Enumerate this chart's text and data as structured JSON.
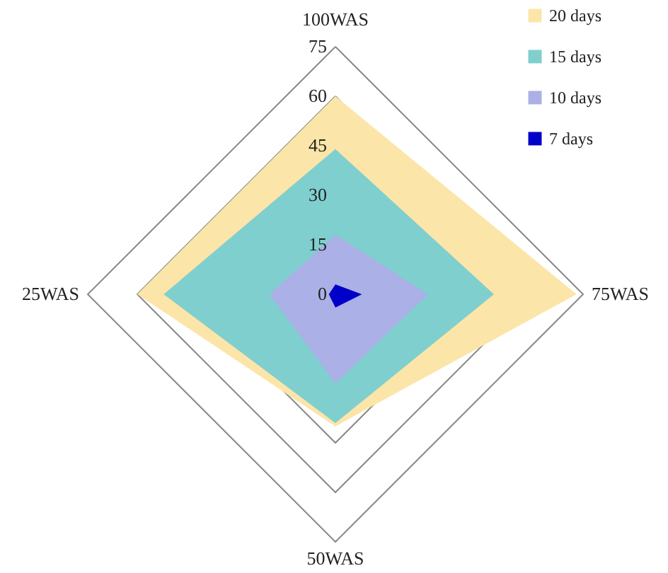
{
  "chart_data": {
    "type": "radar",
    "categories": [
      "100WAS",
      "75WAS",
      "50WAS",
      "25WAS"
    ],
    "series": [
      {
        "name": "20 days",
        "color": "#fce5a8",
        "values": [
          60,
          73,
          40,
          60
        ]
      },
      {
        "name": "15 days",
        "color": "#7fcfcf",
        "values": [
          44,
          48,
          39,
          52
        ]
      },
      {
        "name": "10 days",
        "color": "#abb0e6",
        "values": [
          18,
          28,
          27,
          20
        ]
      },
      {
        "name": "7 days",
        "color": "#0000c8",
        "values": [
          3,
          8,
          4,
          2
        ]
      }
    ],
    "ylim": [
      0,
      75
    ],
    "yticks": [
      0,
      15,
      30,
      45,
      60,
      75
    ],
    "grid": true,
    "legend": "top right"
  }
}
